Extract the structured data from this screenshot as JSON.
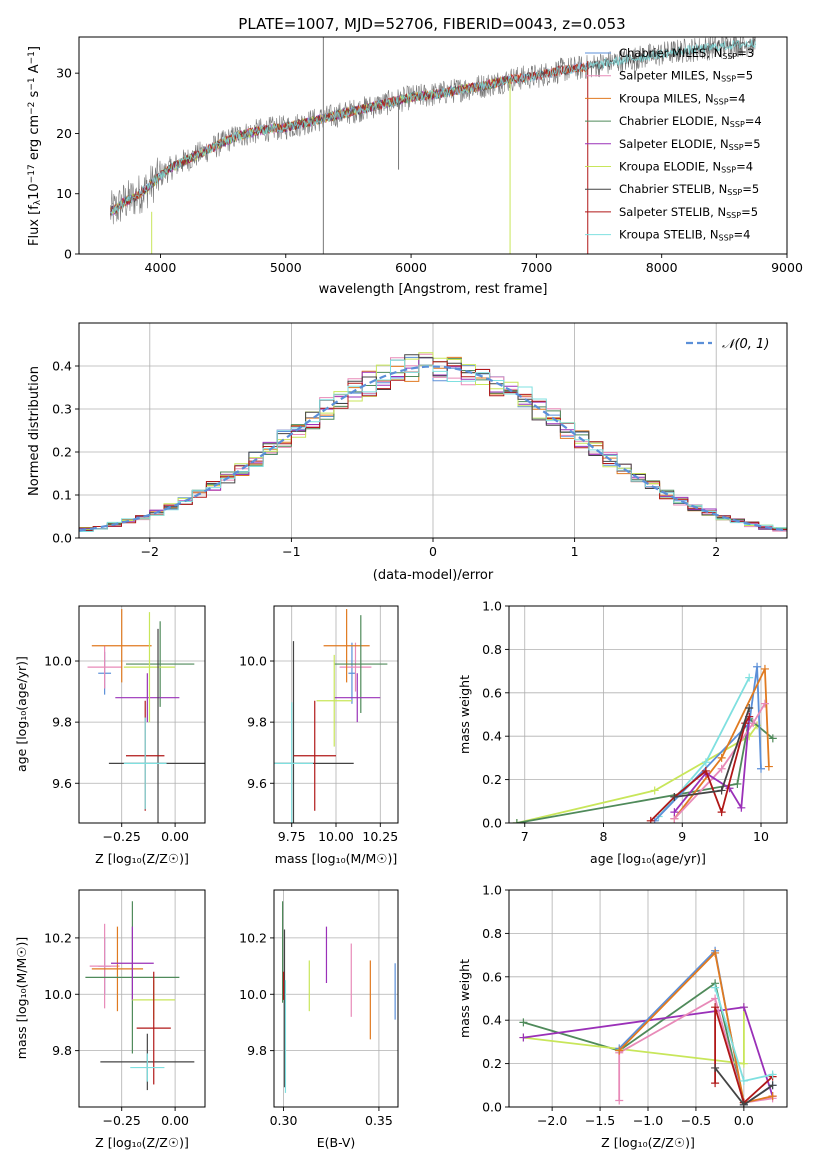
{
  "figure_title": "PLATE=1007, MJD=52706, FIBERID=0043, z=0.053",
  "colors": {
    "chabrier_miles": "#5b8fd8",
    "salpeter_miles": "#e88ab8",
    "kroupa_miles": "#e07a20",
    "chabrier_elodie": "#4f8a5a",
    "salpeter_elodie": "#9a30b8",
    "kroupa_elodie": "#c8e65a",
    "chabrier_stelib": "#444444",
    "salpeter_stelib": "#b01818",
    "kroupa_stelib": "#7fe0e0",
    "observed": "#777777",
    "grid": "#b0b0b0"
  },
  "chart_data": [
    {
      "id": "spectrum",
      "type": "line",
      "xlabel": "wavelength [Angstrom, rest frame]",
      "ylabel": "Flux [f_λ 10^-17 erg cm^-2 s^-1 A^-1]",
      "xlim": [
        3350,
        9000
      ],
      "ylim": [
        0,
        36
      ],
      "xticks": [
        4000,
        5000,
        6000,
        7000,
        8000,
        9000
      ],
      "yticks": [
        0,
        10,
        20,
        30
      ],
      "grid": false,
      "legend_position": "top-right",
      "continuum_x": [
        3600,
        3650,
        3700,
        3800,
        3900,
        4000,
        4100,
        4200,
        4300,
        4400,
        4500,
        4600,
        4700,
        4800,
        4900,
        5000,
        5200,
        5400,
        5600,
        5800,
        6000,
        6200,
        6400,
        6600,
        6800,
        7000,
        7200,
        7400,
        7600,
        7800,
        8000,
        8200,
        8500,
        8750
      ],
      "continuum_y": [
        7,
        7.5,
        8.5,
        9.5,
        11,
        13,
        14.5,
        15.5,
        16.5,
        17.5,
        18.5,
        19.5,
        20,
        20.5,
        20.8,
        21,
        22,
        23,
        24,
        25,
        26,
        26.5,
        27.3,
        28,
        29,
        29.5,
        30.5,
        31,
        31.8,
        32.5,
        33.2,
        33.8,
        34.5,
        35
      ],
      "legend": [
        {
          "label": "Chabrier MILES, N_SSP=3",
          "color_key": "chabrier_miles"
        },
        {
          "label": "Salpeter MILES, N_SSP=5",
          "color_key": "salpeter_miles"
        },
        {
          "label": "Kroupa MILES, N_SSP=4",
          "color_key": "kroupa_miles"
        },
        {
          "label": "Chabrier ELODIE, N_SSP=4",
          "color_key": "chabrier_elodie"
        },
        {
          "label": "Salpeter ELODIE, N_SSP=5",
          "color_key": "salpeter_elodie"
        },
        {
          "label": "Kroupa ELODIE, N_SSP=4",
          "color_key": "kroupa_elodie"
        },
        {
          "label": "Chabrier STELIB, N_SSP=5",
          "color_key": "chabrier_stelib"
        },
        {
          "label": "Salpeter STELIB, N_SSP=5",
          "color_key": "salpeter_stelib"
        },
        {
          "label": "Kroupa STELIB, N_SSP=4",
          "color_key": "kroupa_stelib"
        }
      ],
      "model_end_wavelength": {
        "miles": 7400,
        "elodie": 6800,
        "stelib": 8750
      },
      "vertical_spikes": [
        5300,
        6790,
        7410,
        3930
      ],
      "legend_labels": [
        [
          "Chabrier MILES, N",
          "SSP",
          "=3"
        ],
        [
          "Salpeter MILES, N",
          "SSP",
          "=5"
        ],
        [
          "Kroupa MILES, N",
          "SSP",
          "=4"
        ],
        [
          "Chabrier ELODIE, N",
          "SSP",
          "=4"
        ],
        [
          "Salpeter ELODIE, N",
          "SSP",
          "=5"
        ],
        [
          "Kroupa ELODIE, N",
          "SSP",
          "=4"
        ],
        [
          "Chabrier STELIB, N",
          "SSP",
          "=5"
        ],
        [
          "Salpeter STELIB, N",
          "SSP",
          "=5"
        ],
        [
          "Kroupa STELIB, N",
          "SSP",
          "=4"
        ]
      ]
    },
    {
      "id": "residuals",
      "type": "line",
      "xlabel": "(data-model)/error",
      "ylabel": "Normed distribution",
      "xlim": [
        -2.5,
        2.5
      ],
      "ylim": [
        0,
        0.5
      ],
      "xticks": [
        -2,
        -1,
        0,
        1,
        2
      ],
      "yticks": [
        0.0,
        0.1,
        0.2,
        0.3,
        0.4
      ],
      "grid": true,
      "legend_position": "top-right",
      "legend": [
        {
          "label": "N(0,1)",
          "style": "dashed"
        }
      ],
      "bin_edges_start": -2.5,
      "bin_width": 0.1,
      "bins": 50,
      "hist_perturbations": [
        0.03,
        -0.04,
        0.05,
        -0.02,
        0.045,
        -0.035,
        0.025,
        0.04,
        -0.045
      ]
    },
    {
      "id": "age_vs_Z",
      "type": "scatter",
      "xlabel": "Z [log10(Z/Z☉)]",
      "ylabel": "age [log10(age/yr)]",
      "xlim": [
        -0.45,
        0.14
      ],
      "ylim": [
        9.47,
        10.18
      ],
      "xticks": [
        -0.25,
        0.0
      ],
      "yticks": [
        9.6,
        9.8,
        10.0
      ],
      "grid": true,
      "points": [
        {
          "key": "chabrier_miles",
          "x": -0.33,
          "y": 9.96,
          "xerr": 0.03,
          "yerr": 0.07
        },
        {
          "key": "salpeter_miles",
          "x": -0.33,
          "y": 9.98,
          "xerr": 0.08,
          "yerr": 0.07
        },
        {
          "key": "kroupa_miles",
          "x": -0.25,
          "y": 10.05,
          "xerr": 0.14,
          "yerr": 0.12
        },
        {
          "key": "chabrier_elodie",
          "x": -0.07,
          "y": 9.99,
          "xerr": 0.16,
          "yerr": 0.14
        },
        {
          "key": "salpeter_elodie",
          "x": -0.13,
          "y": 9.88,
          "xerr": 0.15,
          "yerr": 0.08
        },
        {
          "key": "kroupa_elodie",
          "x": -0.12,
          "y": 9.98,
          "xerr": 0.12,
          "yerr": 0.18
        },
        {
          "key": "chabrier_stelib",
          "x": -0.08,
          "y": 9.665,
          "xerr": 0.23,
          "yerr": 0.44
        },
        {
          "key": "salpeter_stelib",
          "x": -0.14,
          "y": 9.69,
          "xerr": 0.09,
          "yerr": 0.18
        },
        {
          "key": "kroupa_stelib",
          "x": -0.14,
          "y": 9.665,
          "xerr": 0.1,
          "yerr": 0.15
        }
      ]
    },
    {
      "id": "age_vs_mass",
      "type": "scatter",
      "xlabel": "mass [log10(M/M☉)]",
      "ylabel": "",
      "xlim": [
        9.65,
        10.35
      ],
      "ylim": [
        9.47,
        10.18
      ],
      "xticks": [
        9.75,
        10.0,
        10.25
      ],
      "yticks": [
        9.6,
        9.8,
        10.0
      ],
      "grid": true,
      "points": [
        {
          "key": "chabrier_miles",
          "x": 10.09,
          "y": 9.96,
          "xerr": 0.02,
          "yerr": 0.1
        },
        {
          "key": "salpeter_miles",
          "x": 10.11,
          "y": 9.98,
          "xerr": 0.09,
          "yerr": 0.08
        },
        {
          "key": "kroupa_miles",
          "x": 10.06,
          "y": 10.05,
          "xerr": 0.13,
          "yerr": 0.12
        },
        {
          "key": "chabrier_elodie",
          "x": 10.14,
          "y": 9.99,
          "xerr": 0.15,
          "yerr": 0.16
        },
        {
          "key": "salpeter_elodie",
          "x": 10.12,
          "y": 9.88,
          "xerr": 0.13,
          "yerr": 0.08
        },
        {
          "key": "kroupa_elodie",
          "x": 9.99,
          "y": 9.87,
          "xerr": 0.1,
          "yerr": 0.15
        },
        {
          "key": "chabrier_stelib",
          "x": 9.76,
          "y": 9.665,
          "xerr": 0.34,
          "yerr": 0.4
        },
        {
          "key": "salpeter_stelib",
          "x": 9.88,
          "y": 9.69,
          "xerr": 0.12,
          "yerr": 0.18
        },
        {
          "key": "kroupa_stelib",
          "x": 9.75,
          "y": 9.665,
          "xerr": 0.12,
          "yerr": 0.2
        }
      ]
    },
    {
      "id": "weight_vs_age",
      "type": "line",
      "xlabel": "age [log10(age/yr)]",
      "ylabel": "mass weight",
      "xlim": [
        6.8,
        10.33
      ],
      "ylim": [
        0,
        1
      ],
      "xticks": [
        7,
        8,
        9,
        10
      ],
      "yticks": [
        0.0,
        0.2,
        0.4,
        0.6,
        0.8,
        1.0
      ],
      "grid": true,
      "series": [
        {
          "key": "kroupa_elodie",
          "x": [
            6.9,
            8.65,
            9.85,
            9.95
          ],
          "y": [
            0.0,
            0.15,
            0.4,
            0.45
          ]
        },
        {
          "key": "chabrier_elodie",
          "x": [
            6.9,
            9.7,
            9.85,
            10.15
          ],
          "y": [
            0.0,
            0.18,
            0.48,
            0.39
          ]
        },
        {
          "key": "kroupa_stelib",
          "x": [
            8.7,
            9.3,
            9.85
          ],
          "y": [
            0.03,
            0.28,
            0.67
          ]
        },
        {
          "key": "chabrier_miles",
          "x": [
            8.65,
            9.85,
            9.95,
            10.0
          ],
          "y": [
            0.01,
            0.46,
            0.72,
            0.25
          ]
        },
        {
          "key": "kroupa_miles",
          "x": [
            8.9,
            9.5,
            10.05,
            10.1
          ],
          "y": [
            0.02,
            0.3,
            0.71,
            0.26
          ]
        },
        {
          "key": "salpeter_miles",
          "x": [
            8.9,
            9.5,
            9.9,
            10.05
          ],
          "y": [
            0.02,
            0.25,
            0.46,
            0.55
          ]
        },
        {
          "key": "salpeter_elodie",
          "x": [
            8.9,
            9.3,
            9.6,
            9.75,
            9.85
          ],
          "y": [
            0.05,
            0.23,
            0.16,
            0.07,
            0.49
          ]
        },
        {
          "key": "salpeter_stelib",
          "x": [
            8.6,
            8.9,
            9.3,
            9.5,
            9.8,
            9.85
          ],
          "y": [
            0.01,
            0.12,
            0.24,
            0.05,
            0.46,
            0.49
          ]
        },
        {
          "key": "chabrier_stelib",
          "x": [
            8.9,
            9.5,
            9.85
          ],
          "y": [
            0.12,
            0.15,
            0.53
          ]
        }
      ]
    },
    {
      "id": "mass_vs_Z",
      "type": "scatter",
      "xlabel": "Z [log10(Z/Z☉)]",
      "ylabel": "mass [log10(M/M☉)]",
      "xlim": [
        -0.45,
        0.14
      ],
      "ylim": [
        9.6,
        10.37
      ],
      "xticks": [
        -0.25,
        0.0
      ],
      "yticks": [
        9.8,
        10.0,
        10.2
      ],
      "grid": true,
      "points": [
        {
          "key": "chabrier_miles",
          "x": -0.33,
          "y": 10.1,
          "xerr": 0.03,
          "yerr": 0.1
        },
        {
          "key": "salpeter_miles",
          "x": -0.33,
          "y": 10.1,
          "xerr": 0.07,
          "yerr": 0.15
        },
        {
          "key": "kroupa_miles",
          "x": -0.27,
          "y": 10.09,
          "xerr": 0.12,
          "yerr": 0.15
        },
        {
          "key": "chabrier_elodie",
          "x": -0.2,
          "y": 10.06,
          "xerr": 0.22,
          "yerr": 0.27
        },
        {
          "key": "salpeter_elodie",
          "x": -0.2,
          "y": 10.11,
          "xerr": 0.1,
          "yerr": 0.13
        },
        {
          "key": "kroupa_elodie",
          "x": -0.1,
          "y": 9.98,
          "xerr": 0.1,
          "yerr": 0.07
        },
        {
          "key": "chabrier_stelib",
          "x": -0.13,
          "y": 9.76,
          "xerr": 0.22,
          "yerr": 0.1
        },
        {
          "key": "salpeter_stelib",
          "x": -0.1,
          "y": 9.88,
          "xerr": 0.08,
          "yerr": 0.2
        },
        {
          "key": "kroupa_stelib",
          "x": -0.13,
          "y": 9.74,
          "xerr": 0.08,
          "yerr": 0.05
        }
      ]
    },
    {
      "id": "mass_vs_EBV",
      "type": "scatter",
      "xlabel": "E(B-V)",
      "ylabel": "",
      "xlim": [
        0.295,
        0.36
      ],
      "ylim": [
        9.6,
        10.37
      ],
      "xticks": [
        0.3,
        0.35
      ],
      "yticks": [
        9.8,
        10.0,
        10.2
      ],
      "grid": true,
      "points": [
        {
          "key": "chabrier_miles",
          "x": 0.3585,
          "y": 10.01,
          "xerr": 0,
          "yerr": 0.1
        },
        {
          "key": "salpeter_miles",
          "x": 0.3355,
          "y": 10.05,
          "xerr": 0,
          "yerr": 0.13
        },
        {
          "key": "kroupa_miles",
          "x": 0.3455,
          "y": 9.98,
          "xerr": 0,
          "yerr": 0.14
        },
        {
          "key": "chabrier_elodie",
          "x": 0.2995,
          "y": 10.15,
          "xerr": 0,
          "yerr": 0.18
        },
        {
          "key": "salpeter_elodie",
          "x": 0.3225,
          "y": 10.14,
          "xerr": 0,
          "yerr": 0.1
        },
        {
          "key": "kroupa_elodie",
          "x": 0.3135,
          "y": 10.03,
          "xerr": 0,
          "yerr": 0.09
        },
        {
          "key": "chabrier_stelib",
          "x": 0.3005,
          "y": 9.95,
          "xerr": 0,
          "yerr": 0.28
        },
        {
          "key": "salpeter_stelib",
          "x": 0.3,
          "y": 10.03,
          "xerr": 0,
          "yerr": 0.05
        },
        {
          "key": "kroupa_stelib",
          "x": 0.301,
          "y": 9.85,
          "xerr": 0,
          "yerr": 0.2
        }
      ]
    },
    {
      "id": "weight_vs_Z",
      "type": "line",
      "xlabel": "Z [log10(Z/Z☉)]",
      "ylabel": "mass weight",
      "xlim": [
        -2.45,
        0.45
      ],
      "ylim": [
        0,
        1
      ],
      "xticks": [
        -2.0,
        -1.5,
        -1.0,
        -0.5,
        0.0
      ],
      "yticks": [
        0.0,
        0.2,
        0.4,
        0.6,
        0.8,
        1.0
      ],
      "grid": true,
      "series": [
        {
          "key": "chabrier_elodie",
          "x": [
            -2.3,
            -1.3,
            -0.3,
            0.0
          ],
          "y": [
            0.39,
            0.26,
            0.57,
            0.01
          ]
        },
        {
          "key": "kroupa_elodie",
          "x": [
            -2.3,
            0.0,
            0.0
          ],
          "y": [
            0.32,
            0.2,
            0.46
          ]
        },
        {
          "key": "salpeter_elodie",
          "x": [
            -2.3,
            0.0,
            0.3
          ],
          "y": [
            0.32,
            0.46,
            0.05
          ]
        },
        {
          "key": "salpeter_miles",
          "x": [
            -1.3,
            -1.3,
            -0.3,
            0.0,
            0.3
          ],
          "y": [
            0.03,
            0.25,
            0.5,
            0.02,
            0.04
          ]
        },
        {
          "key": "chabrier_miles",
          "x": [
            -1.3,
            -0.3,
            0.0,
            0.3
          ],
          "y": [
            0.27,
            0.72,
            0.01,
            0.1
          ]
        },
        {
          "key": "kroupa_miles",
          "x": [
            -1.3,
            -0.3,
            0.0,
            0.3
          ],
          "y": [
            0.26,
            0.71,
            0.02,
            0.05
          ]
        },
        {
          "key": "salpeter_stelib",
          "x": [
            -0.3,
            -0.3,
            0.0,
            0.3
          ],
          "y": [
            0.11,
            0.46,
            0.02,
            0.14
          ]
        },
        {
          "key": "chabrier_stelib",
          "x": [
            -0.3,
            0.0,
            0.3
          ],
          "y": [
            0.18,
            0.01,
            0.1
          ]
        },
        {
          "key": "kroupa_stelib",
          "x": [
            -0.3,
            0.0,
            0.3
          ],
          "y": [
            0.55,
            0.12,
            0.15
          ]
        }
      ]
    }
  ],
  "labels": {
    "spec_ylabel": "Flux [f",
    "spec_ylabel_rest": "10",
    "spec_ylabel_unit": " erg cm",
    "spec_ylabel_unit2": " s",
    "spec_ylabel_end": " A",
    "resid_legend": "N(0,1)"
  }
}
